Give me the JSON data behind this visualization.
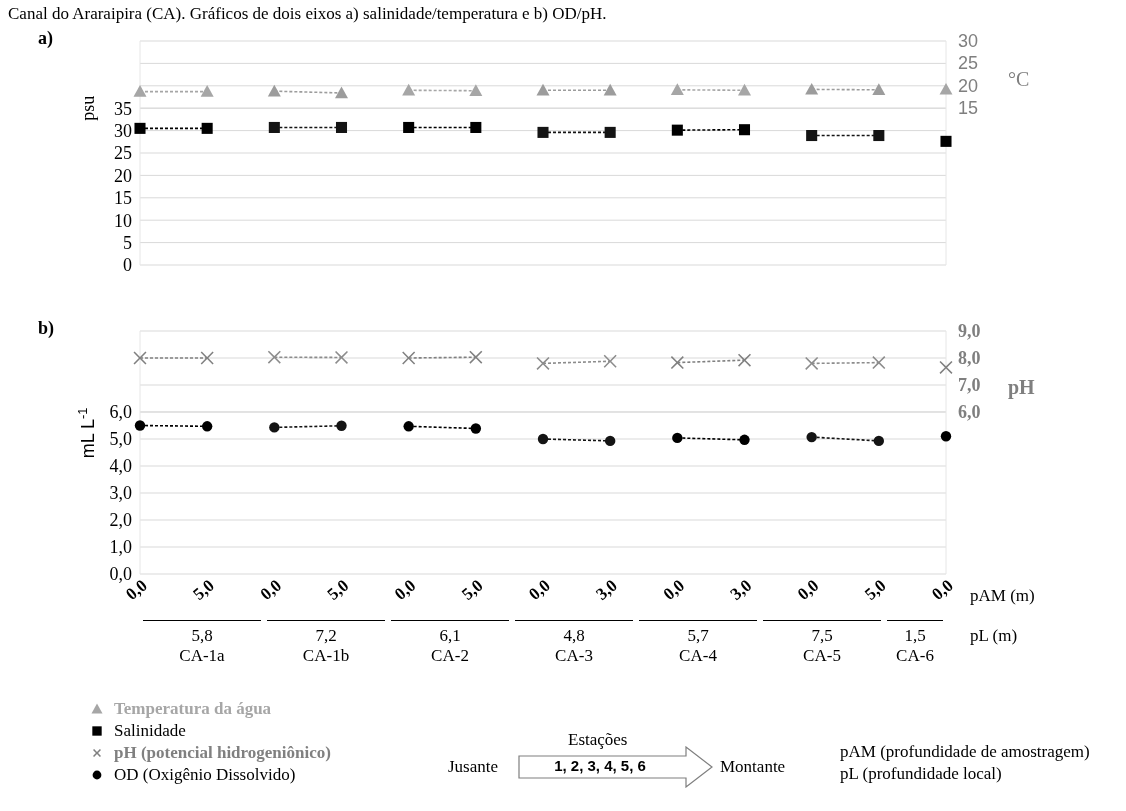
{
  "chart_data": [
    {
      "type": "line",
      "title": "a)",
      "ylabel": "psu",
      "y2label": "°C",
      "annotations": [
        "Canal do Araraipira (CA). Gráficos de dois eixos a) salinidade/temperatura e b) OD/pH."
      ],
      "categories": [
        "0,0",
        "5,0",
        "0,0",
        "5,0",
        "0,0",
        "5,0",
        "0,0",
        "3,0",
        "0,0",
        "3,0",
        "0,0",
        "5,0",
        "0,0"
      ],
      "series": [
        {
          "name": "Temperatura da água",
          "color": "#a6a6a6",
          "marker": "triangle",
          "axis": "y2",
          "values": [
            18.7,
            18.7,
            null,
            null,
            19.0,
            18.9,
            null,
            null,
            19.1,
            19.0,
            null,
            null,
            19.2
          ]
        },
        {
          "color": "#9c9c9c",
          "marker": "triangle",
          "axis": "y2",
          "values": [
            null,
            null,
            18.8,
            18.4,
            null,
            null,
            19.0,
            19.0,
            null,
            null,
            19.2,
            19.1,
            null
          ]
        },
        {
          "name": "Salinidade",
          "color": "#000000",
          "marker": "square",
          "values": [
            30.5,
            30.5,
            null,
            null,
            30.7,
            30.7,
            null,
            null,
            30.1,
            30.2,
            null,
            null,
            27.6
          ]
        },
        {
          "color": "#141414",
          "marker": "square",
          "values": [
            null,
            null,
            30.7,
            30.7,
            null,
            null,
            29.6,
            29.6,
            null,
            null,
            28.9,
            28.9,
            null
          ]
        }
      ],
      "ylim": [
        0,
        50
      ],
      "yticks": [
        0,
        5,
        10,
        15,
        20,
        25,
        30,
        35
      ],
      "y2lim": [
        -20,
        30
      ],
      "y2ticks": [
        15,
        20,
        25,
        30
      ],
      "grid": "y",
      "legend": "bottom left",
      "line_style": "dotted",
      "tick_labels": "y"
    },
    {
      "type": "line",
      "title": "b)",
      "xlabel": "pAM (m)",
      "ylabel": "mL L$^{-1}$",
      "y2label": "pH",
      "annotations": [
        "5,8",
        "7,2",
        "6,1",
        "4,8",
        "5,7",
        "7,5",
        "1,5",
        "CA-1a",
        "CA-1b",
        "CA-2",
        "CA-3",
        "CA-4",
        "CA-5",
        "CA-6",
        "pL (m)",
        "Estações",
        "1, 2, 3, 4, 5, 6",
        "Jusante",
        "Montante",
        "pAM (profundidade de amostragem)",
        "pL (profundidade local)"
      ],
      "categories": [
        "0,0",
        "5,0",
        "0,0",
        "5,0",
        "0,0",
        "5,0",
        "0,0",
        "3,0",
        "0,0",
        "3,0",
        "0,0",
        "5,0",
        "0,0"
      ],
      "series": [
        {
          "name": "pH (potencial hidrogeniônico)",
          "color": "#808080",
          "marker": "cross",
          "axis": "y2",
          "values": [
            8.0,
            8.0,
            null,
            null,
            8.0,
            8.03,
            null,
            null,
            7.83,
            7.92,
            null,
            null,
            7.65
          ]
        },
        {
          "color": "#8c8c8c",
          "marker": "cross",
          "axis": "y2",
          "values": [
            null,
            null,
            8.03,
            8.02,
            null,
            null,
            7.8,
            7.88,
            null,
            null,
            7.8,
            7.83,
            null
          ]
        },
        {
          "name": "OD (Oxigênio Dissolvido)",
          "color": "#000000",
          "marker": "circle",
          "values": [
            5.5,
            5.47,
            null,
            null,
            5.47,
            5.39,
            null,
            null,
            5.04,
            4.97,
            null,
            null,
            5.1
          ]
        },
        {
          "color": "#141414",
          "marker": "circle",
          "values": [
            null,
            null,
            5.43,
            5.49,
            null,
            null,
            5.0,
            4.93,
            null,
            null,
            5.07,
            4.93,
            null
          ]
        }
      ],
      "ylim": [
        0,
        9
      ],
      "yticks": [
        {
          "value": 0,
          "label": "0,0"
        },
        {
          "value": 1,
          "label": "1,0"
        },
        {
          "value": 2,
          "label": "2,0"
        },
        {
          "value": 3,
          "label": "3,0"
        },
        {
          "value": 4,
          "label": "4,0"
        },
        {
          "value": 5,
          "label": "5,0"
        },
        {
          "value": 6,
          "label": "6,0"
        }
      ],
      "y2lim": [
        0,
        9
      ],
      "y2ticks": [
        {
          "value": 6,
          "label": "6,0"
        },
        {
          "value": 7,
          "label": "7,0"
        },
        {
          "value": 8,
          "label": "8,0"
        },
        {
          "value": 9,
          "label": "9,0"
        }
      ],
      "grid": "y",
      "legend": "bottom left",
      "line_style": "dotted"
    }
  ]
}
